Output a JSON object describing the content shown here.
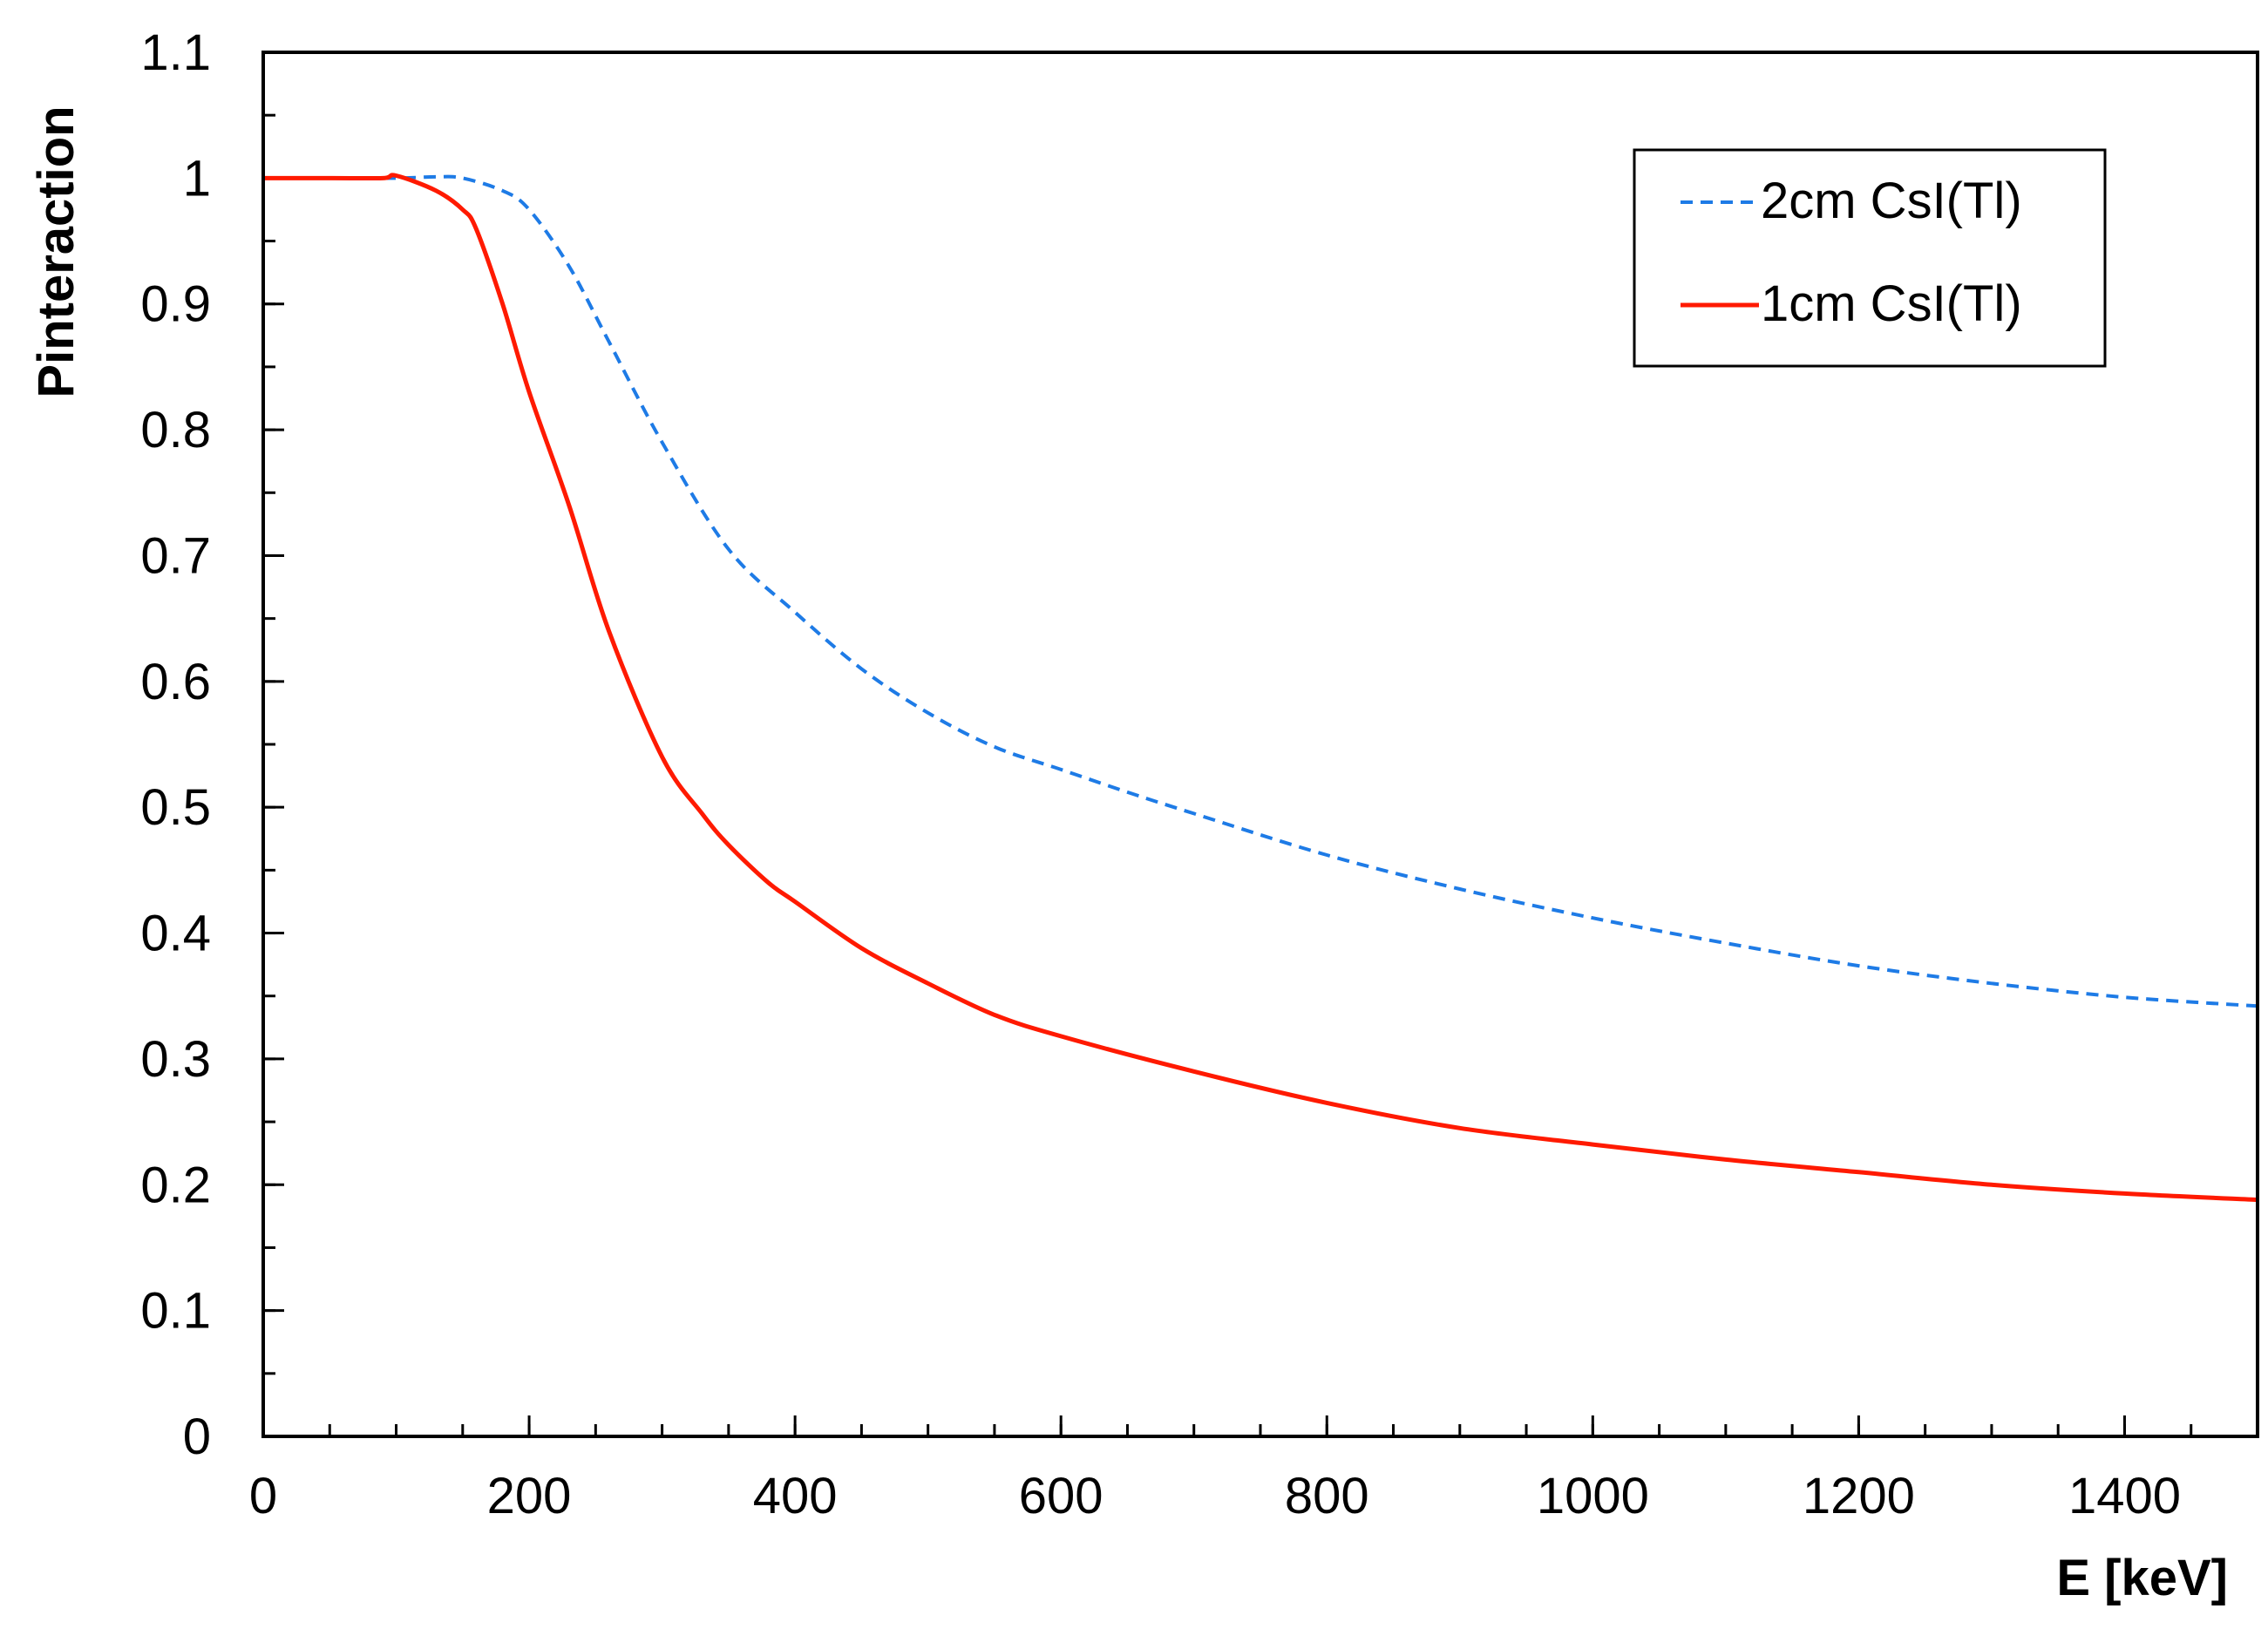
{
  "chart_data": {
    "type": "line",
    "xlabel": "E [keV]",
    "ylabel": "Pinteraction",
    "xlim": [
      0,
      1500
    ],
    "ylim": [
      0,
      1.1
    ],
    "x_ticks": [
      0,
      200,
      400,
      600,
      800,
      1000,
      1200,
      1400
    ],
    "x_tick_labels": [
      "0",
      "200",
      "400",
      "600",
      "800",
      "1000",
      "1200",
      "1400"
    ],
    "y_ticks": [
      0,
      0.1,
      0.2,
      0.3,
      0.4,
      0.5,
      0.6,
      0.7,
      0.8,
      0.9,
      1,
      1.1
    ],
    "y_tick_labels": [
      "0",
      "0.1",
      "0.2",
      "0.3",
      "0.4",
      "0.5",
      "0.6",
      "0.7",
      "0.8",
      "0.9",
      "1",
      "1.1"
    ],
    "x_minor_step": 50,
    "y_minor_step": 0.05,
    "grid": false,
    "legend_position": "top-right",
    "series": [
      {
        "name": "2cm CsI(Tl)",
        "color": "#1e7be6",
        "style": "dashed",
        "x": [
          0,
          50,
          100,
          130,
          150,
          180,
          200,
          230,
          260,
          300,
          350,
          400,
          450,
          500,
          550,
          600,
          650,
          700,
          800,
          900,
          1000,
          1100,
          1200,
          1300,
          1400,
          1500
        ],
        "y": [
          1.0,
          1.0,
          1.0,
          1.001,
          1.0,
          0.99,
          0.975,
          0.93,
          0.87,
          0.79,
          0.705,
          0.655,
          0.61,
          0.575,
          0.548,
          0.53,
          0.512,
          0.495,
          0.462,
          0.435,
          0.412,
          0.392,
          0.374,
          0.36,
          0.349,
          0.342
        ]
      },
      {
        "name": "1cm CsI(Tl)",
        "color": "#ff1a00",
        "style": "solid",
        "x": [
          0,
          50,
          90,
          100,
          130,
          150,
          160,
          180,
          200,
          230,
          260,
          300,
          330,
          350,
          380,
          400,
          450,
          500,
          550,
          600,
          700,
          800,
          900,
          1000,
          1100,
          1200,
          1300,
          1400,
          1500
        ],
        "y": [
          1.0,
          1.0,
          1.0,
          1.002,
          0.99,
          0.975,
          0.96,
          0.9,
          0.83,
          0.74,
          0.64,
          0.54,
          0.495,
          0.47,
          0.44,
          0.425,
          0.388,
          0.36,
          0.335,
          0.318,
          0.29,
          0.265,
          0.245,
          0.232,
          0.22,
          0.21,
          0.2,
          0.193,
          0.188
        ]
      }
    ]
  }
}
